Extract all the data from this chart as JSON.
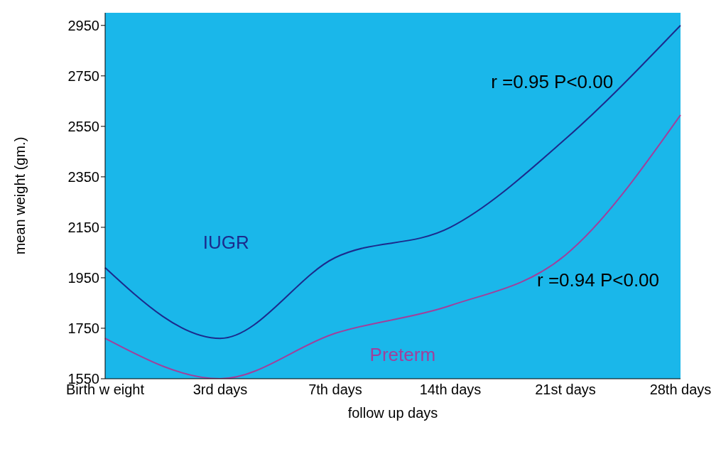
{
  "chart_data": {
    "type": "line",
    "xlabel": "follow  up days",
    "ylabel": "mean weight (gm.)",
    "categories": [
      "Birth w eight",
      "3rd days",
      "7th days",
      "14th days",
      "21st days",
      "28th days"
    ],
    "series": [
      {
        "name": "IUGR",
        "color": "#1c2a8c",
        "values": [
          1990,
          1710,
          2030,
          2150,
          2500,
          2950
        ]
      },
      {
        "name": "Preterm",
        "color": "#a0409c",
        "values": [
          1710,
          1550,
          1730,
          1840,
          2040,
          2595
        ]
      }
    ],
    "ylim": [
      1550,
      3000
    ],
    "yticks": [
      1550,
      1750,
      1950,
      2150,
      2350,
      2550,
      2750,
      2950
    ],
    "annotations": [
      "r =0.95 P<0.00",
      "r =0.94 P<0.00"
    ],
    "grid": false,
    "marker": "none",
    "line_style": "solid"
  }
}
